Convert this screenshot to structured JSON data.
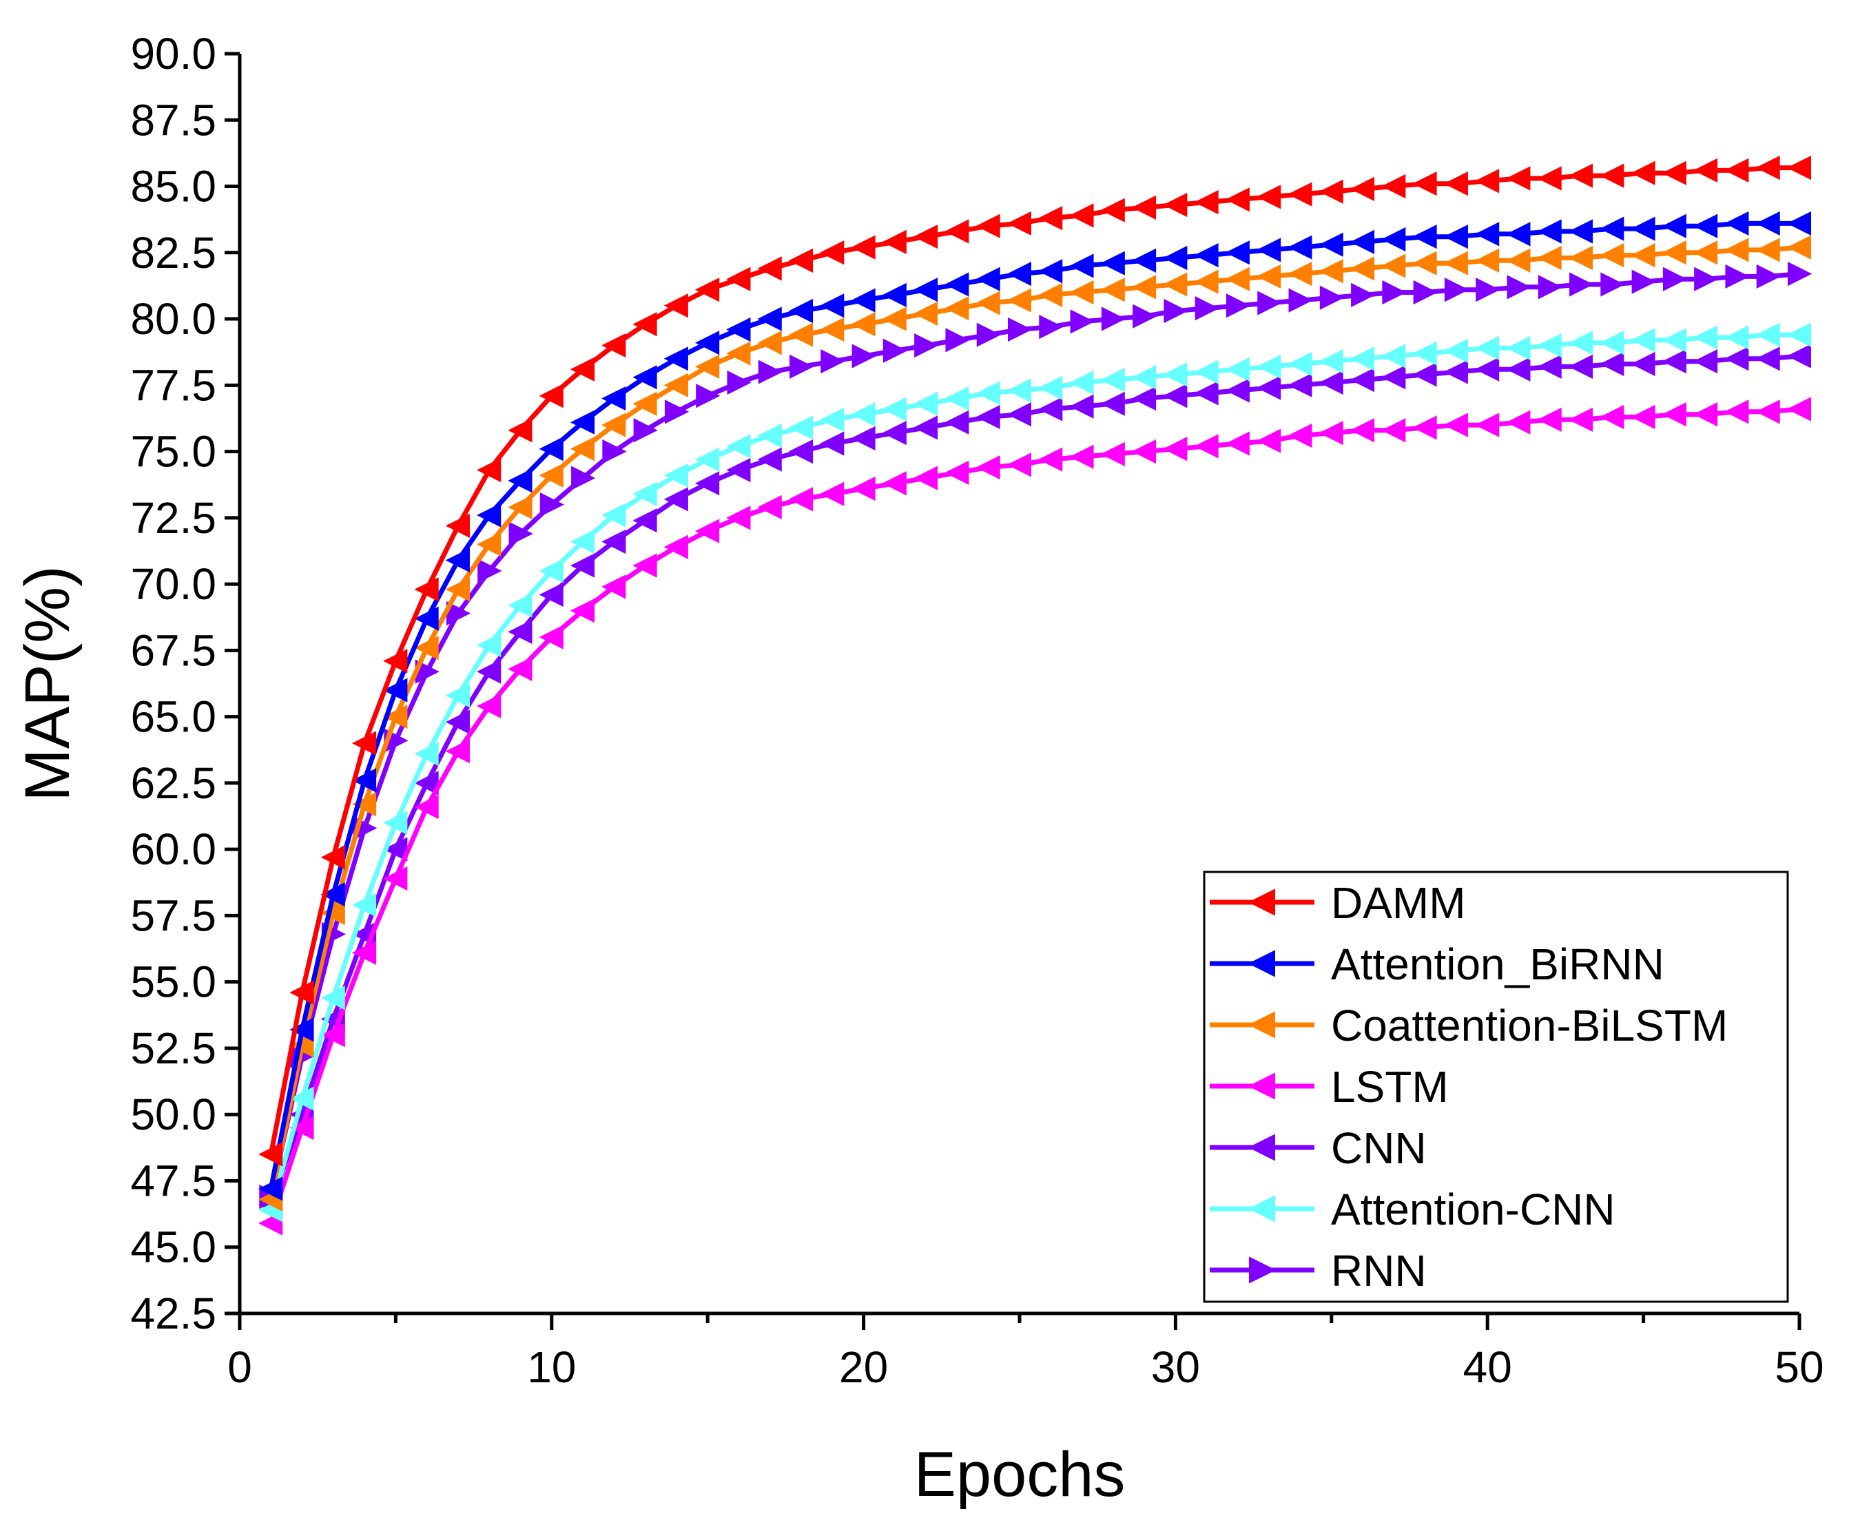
{
  "chart_data": {
    "type": "line",
    "title": "",
    "xlabel": "Epochs",
    "ylabel": "MAP(%)",
    "xlim": [
      0,
      50
    ],
    "ylim": [
      42.5,
      90.0
    ],
    "x_ticks": [
      "0",
      "10",
      "20",
      "30",
      "40",
      "50"
    ],
    "y_ticks": [
      "42.5",
      "45.0",
      "47.5",
      "50.0",
      "52.5",
      "55.0",
      "57.5",
      "60.0",
      "62.5",
      "65.0",
      "67.5",
      "70.0",
      "72.5",
      "75.0",
      "77.5",
      "80.0",
      "82.5",
      "85.0",
      "87.5",
      "90.0"
    ],
    "grid": false,
    "legend_position": "bottom-right",
    "x": [
      1,
      2,
      3,
      4,
      5,
      6,
      7,
      8,
      9,
      10,
      11,
      12,
      13,
      14,
      15,
      16,
      17,
      18,
      19,
      20,
      21,
      22,
      23,
      24,
      25,
      26,
      27,
      28,
      29,
      30,
      31,
      32,
      33,
      34,
      35,
      36,
      37,
      38,
      39,
      40,
      41,
      42,
      43,
      44,
      45,
      46,
      47,
      48,
      49,
      50
    ],
    "series": [
      {
        "name": "DAMM",
        "color": "#ff0000",
        "marker": "left",
        "values": [
          48.5,
          54.6,
          59.7,
          64.0,
          67.1,
          69.8,
          72.2,
          74.3,
          75.8,
          77.1,
          78.1,
          79.0,
          79.8,
          80.5,
          81.1,
          81.5,
          81.9,
          82.2,
          82.5,
          82.7,
          82.9,
          83.1,
          83.3,
          83.5,
          83.6,
          83.8,
          83.9,
          84.1,
          84.2,
          84.3,
          84.4,
          84.5,
          84.6,
          84.7,
          84.8,
          84.9,
          85.0,
          85.1,
          85.1,
          85.2,
          85.3,
          85.3,
          85.4,
          85.4,
          85.5,
          85.5,
          85.6,
          85.6,
          85.7,
          85.7
        ]
      },
      {
        "name": "Attention_BiRNN",
        "color": "#0000ff",
        "marker": "left",
        "values": [
          47.2,
          53.2,
          58.3,
          62.6,
          66.0,
          68.7,
          70.9,
          72.6,
          73.9,
          75.1,
          76.1,
          77.0,
          77.8,
          78.5,
          79.1,
          79.6,
          80.0,
          80.3,
          80.5,
          80.7,
          80.9,
          81.1,
          81.3,
          81.5,
          81.7,
          81.8,
          82.0,
          82.1,
          82.2,
          82.3,
          82.4,
          82.5,
          82.6,
          82.7,
          82.8,
          82.9,
          83.0,
          83.1,
          83.1,
          83.2,
          83.2,
          83.3,
          83.3,
          83.4,
          83.4,
          83.5,
          83.5,
          83.6,
          83.6,
          83.6
        ]
      },
      {
        "name": "Coattention-BiLSTM",
        "color": "#ff8000",
        "marker": "left",
        "values": [
          46.8,
          52.6,
          57.6,
          61.7,
          65.0,
          67.6,
          69.8,
          71.5,
          72.9,
          74.1,
          75.1,
          76.0,
          76.8,
          77.5,
          78.2,
          78.7,
          79.1,
          79.4,
          79.6,
          79.8,
          80.0,
          80.2,
          80.4,
          80.6,
          80.7,
          80.9,
          81.0,
          81.1,
          81.2,
          81.3,
          81.4,
          81.5,
          81.6,
          81.7,
          81.8,
          81.9,
          82.0,
          82.1,
          82.1,
          82.2,
          82.2,
          82.3,
          82.3,
          82.4,
          82.4,
          82.5,
          82.5,
          82.6,
          82.6,
          82.7
        ]
      },
      {
        "name": "LSTM",
        "color": "#ff00ff",
        "marker": "left",
        "values": [
          45.9,
          49.5,
          53.0,
          56.1,
          58.9,
          61.6,
          63.7,
          65.4,
          66.8,
          68.0,
          69.0,
          69.9,
          70.7,
          71.4,
          72.0,
          72.5,
          72.9,
          73.2,
          73.4,
          73.6,
          73.8,
          74.0,
          74.2,
          74.4,
          74.5,
          74.7,
          74.8,
          74.9,
          75.0,
          75.1,
          75.2,
          75.3,
          75.4,
          75.6,
          75.7,
          75.8,
          75.8,
          75.9,
          76.0,
          76.0,
          76.1,
          76.2,
          76.2,
          76.3,
          76.3,
          76.4,
          76.4,
          76.5,
          76.5,
          76.6
        ]
      },
      {
        "name": "CNN",
        "color": "#8000ff",
        "marker": "left",
        "values": [
          46.6,
          50.0,
          53.6,
          56.8,
          60.0,
          62.5,
          64.8,
          66.7,
          68.2,
          69.6,
          70.7,
          71.6,
          72.4,
          73.2,
          73.8,
          74.3,
          74.7,
          75.0,
          75.3,
          75.5,
          75.7,
          75.9,
          76.1,
          76.3,
          76.4,
          76.6,
          76.7,
          76.8,
          77.0,
          77.1,
          77.2,
          77.3,
          77.4,
          77.5,
          77.6,
          77.7,
          77.8,
          77.9,
          78.0,
          78.1,
          78.1,
          78.2,
          78.2,
          78.3,
          78.3,
          78.4,
          78.4,
          78.5,
          78.5,
          78.6
        ]
      },
      {
        "name": "Attention-CNN",
        "color": "#66ffff",
        "marker": "left",
        "values": [
          46.4,
          50.6,
          54.4,
          57.9,
          61.0,
          63.6,
          65.8,
          67.7,
          69.2,
          70.5,
          71.6,
          72.6,
          73.4,
          74.1,
          74.7,
          75.2,
          75.6,
          75.9,
          76.2,
          76.4,
          76.6,
          76.8,
          77.0,
          77.2,
          77.3,
          77.4,
          77.6,
          77.7,
          77.8,
          77.9,
          78.0,
          78.1,
          78.2,
          78.3,
          78.4,
          78.5,
          78.6,
          78.7,
          78.8,
          78.9,
          78.9,
          79.0,
          79.1,
          79.1,
          79.2,
          79.2,
          79.3,
          79.3,
          79.4,
          79.4
        ]
      },
      {
        "name": "RNN",
        "color": "#8000ff",
        "marker": "right",
        "values": [
          46.9,
          52.2,
          56.8,
          60.8,
          64.1,
          66.7,
          68.9,
          70.5,
          71.9,
          73.0,
          74.0,
          75.0,
          75.8,
          76.5,
          77.1,
          77.6,
          78.0,
          78.2,
          78.4,
          78.6,
          78.8,
          79.0,
          79.2,
          79.4,
          79.6,
          79.7,
          79.9,
          80.0,
          80.1,
          80.3,
          80.4,
          80.5,
          80.6,
          80.7,
          80.8,
          80.9,
          81.0,
          81.0,
          81.1,
          81.1,
          81.2,
          81.2,
          81.3,
          81.3,
          81.4,
          81.5,
          81.5,
          81.6,
          81.6,
          81.7
        ]
      }
    ]
  }
}
